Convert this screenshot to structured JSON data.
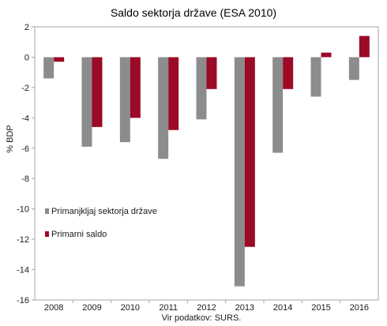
{
  "chart_data": {
    "type": "bar",
    "title": "Saldo sektorja države (ESA 2010)",
    "xlabel": "",
    "ylabel": "% BDP",
    "source": "Vir podatkov: SURS.",
    "categories": [
      "2008",
      "2009",
      "2010",
      "2011",
      "2012",
      "2013",
      "2014",
      "2015",
      "2016"
    ],
    "series": [
      {
        "name": "Primanjkljaj sektorja države",
        "color": "#8c8c8c",
        "values": [
          -1.4,
          -5.9,
          -5.6,
          -6.7,
          -4.1,
          -15.1,
          -6.3,
          -2.6,
          -1.5
        ]
      },
      {
        "name": "Primarni saldo",
        "color": "#9b0a26",
        "values": [
          -0.3,
          -4.6,
          -4.0,
          -4.8,
          -2.1,
          -12.5,
          -2.1,
          0.3,
          1.4
        ]
      }
    ],
    "ylim": [
      -16,
      2
    ],
    "yticks": [
      2,
      0,
      -2,
      -4,
      -6,
      -8,
      -10,
      -12,
      -14,
      -16
    ],
    "grid": false,
    "legend_position": "bottom-left"
  }
}
